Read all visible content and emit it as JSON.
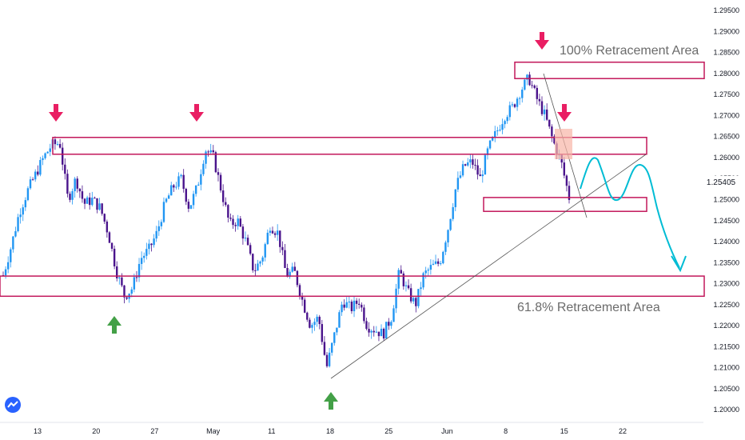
{
  "chart_data": {
    "type": "candlestick",
    "y_ticks": [
      "1.29500",
      "1.29000",
      "1.28500",
      "1.28000",
      "1.27500",
      "1.27000",
      "1.26500",
      "1.26000",
      "1.25500",
      "1.25000",
      "1.24500",
      "1.24000",
      "1.23500",
      "1.23000",
      "1.22500",
      "1.22000",
      "1.21500",
      "1.21000",
      "1.20500",
      "1.20000"
    ],
    "x_ticks": [
      "13",
      "20",
      "27",
      "May",
      "11",
      "18",
      "25",
      "Jun",
      "8",
      "15",
      "22"
    ],
    "current_price": "1.25405",
    "ylim": [
      1.1985,
      1.2975
    ],
    "annotations": {
      "top_label": "100% Retracement Area",
      "bottom_label": "61.8% Retracement Area"
    },
    "zones": [
      {
        "name": "resistance",
        "y": [
          1.2608,
          1.2648
        ]
      },
      {
        "name": "retracement-100",
        "y": [
          1.2788,
          1.2827
        ]
      },
      {
        "name": "support-minor",
        "y": [
          1.2472,
          1.2505
        ]
      },
      {
        "name": "retracement-61.8",
        "y": [
          1.227,
          1.2318
        ]
      }
    ],
    "close_path": [
      1.232,
      1.239,
      1.247,
      1.252,
      1.256,
      1.26,
      1.263,
      1.2635,
      1.25,
      1.255,
      1.249,
      1.25,
      1.248,
      1.242,
      1.233,
      1.227,
      1.229,
      1.236,
      1.238,
      1.242,
      1.249,
      1.253,
      1.255,
      1.248,
      1.253,
      1.262,
      1.26,
      1.252,
      1.244,
      1.245,
      1.24,
      1.233,
      1.236,
      1.244,
      1.242,
      1.232,
      1.233,
      1.226,
      1.22,
      1.222,
      1.21,
      1.218,
      1.226,
      1.224,
      1.226,
      1.22,
      1.219,
      1.218,
      1.222,
      1.233,
      1.228,
      1.225,
      1.232,
      1.234,
      1.235,
      1.243,
      1.253,
      1.258,
      1.259,
      1.255,
      1.262,
      1.266,
      1.27,
      1.272,
      1.276,
      1.279,
      1.274,
      1.27,
      1.264,
      1.259,
      1.2505
    ],
    "colors": {
      "up": "#2196f3",
      "down": "#4a148c",
      "zone": "#c2185b",
      "sell_arrow": "#e91e63",
      "buy_arrow": "#43a047",
      "projection": "#00bcd4"
    }
  }
}
